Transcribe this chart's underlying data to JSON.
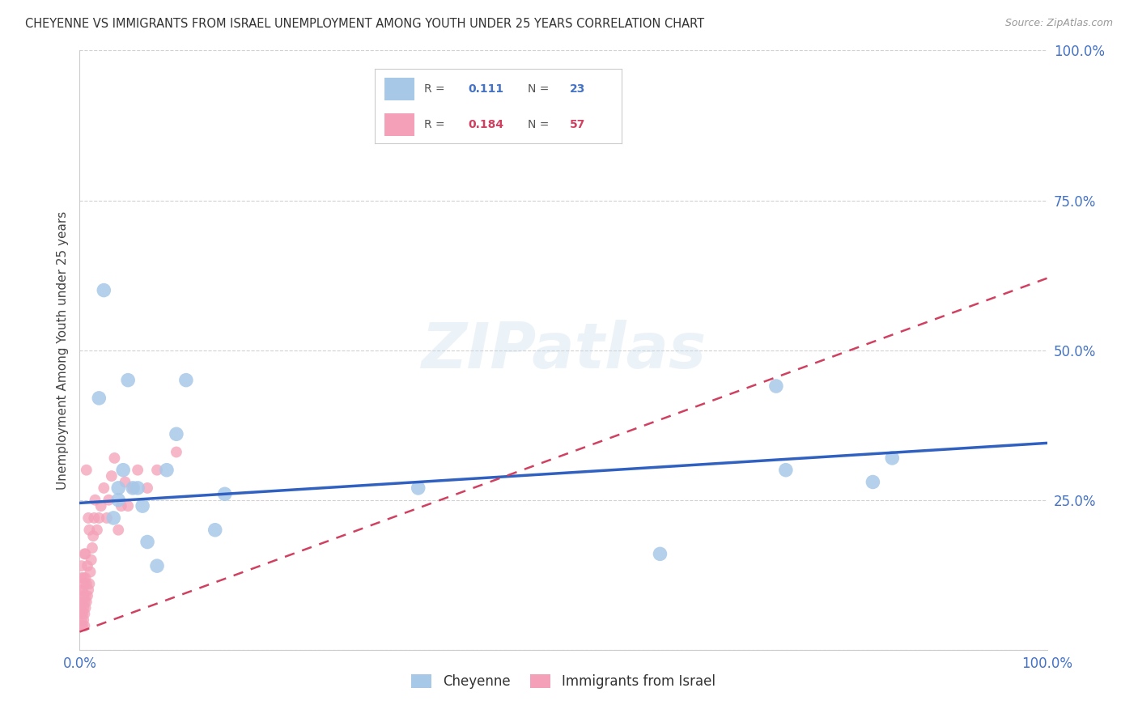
{
  "title": "CHEYENNE VS IMMIGRANTS FROM ISRAEL UNEMPLOYMENT AMONG YOUTH UNDER 25 YEARS CORRELATION CHART",
  "source": "Source: ZipAtlas.com",
  "ylabel": "Unemployment Among Youth under 25 years",
  "xlim": [
    0,
    1.0
  ],
  "ylim": [
    0,
    1.0
  ],
  "cheyenne_R": 0.111,
  "cheyenne_N": 23,
  "israel_R": 0.184,
  "israel_N": 57,
  "cheyenne_color": "#a8c8e8",
  "israel_color": "#f4a0b8",
  "cheyenne_line_color": "#3060c0",
  "israel_line_color": "#d04060",
  "watermark": "ZIPatlas",
  "background_color": "#ffffff",
  "cheyenne_x": [
    0.02,
    0.025,
    0.035,
    0.04,
    0.04,
    0.045,
    0.05,
    0.055,
    0.06,
    0.065,
    0.07,
    0.08,
    0.09,
    0.1,
    0.11,
    0.14,
    0.15,
    0.35,
    0.6,
    0.72,
    0.73,
    0.82,
    0.84
  ],
  "cheyenne_y": [
    0.42,
    0.6,
    0.22,
    0.27,
    0.25,
    0.3,
    0.45,
    0.27,
    0.27,
    0.24,
    0.18,
    0.14,
    0.3,
    0.36,
    0.45,
    0.2,
    0.26,
    0.27,
    0.16,
    0.44,
    0.3,
    0.28,
    0.32
  ],
  "israel_x": [
    0.002,
    0.002,
    0.002,
    0.002,
    0.002,
    0.002,
    0.002,
    0.002,
    0.003,
    0.003,
    0.003,
    0.003,
    0.004,
    0.004,
    0.004,
    0.004,
    0.005,
    0.005,
    0.005,
    0.005,
    0.005,
    0.006,
    0.006,
    0.006,
    0.006,
    0.007,
    0.007,
    0.007,
    0.008,
    0.008,
    0.009,
    0.009,
    0.01,
    0.01,
    0.011,
    0.012,
    0.013,
    0.014,
    0.015,
    0.016,
    0.018,
    0.02,
    0.022,
    0.025,
    0.028,
    0.03,
    0.033,
    0.036,
    0.04,
    0.043,
    0.047,
    0.05,
    0.055,
    0.06,
    0.07,
    0.08,
    0.1
  ],
  "israel_y": [
    0.04,
    0.05,
    0.06,
    0.07,
    0.08,
    0.1,
    0.12,
    0.14,
    0.04,
    0.06,
    0.08,
    0.1,
    0.05,
    0.07,
    0.09,
    0.12,
    0.04,
    0.06,
    0.08,
    0.11,
    0.16,
    0.07,
    0.09,
    0.12,
    0.16,
    0.08,
    0.11,
    0.3,
    0.09,
    0.14,
    0.1,
    0.22,
    0.11,
    0.2,
    0.13,
    0.15,
    0.17,
    0.19,
    0.22,
    0.25,
    0.2,
    0.22,
    0.24,
    0.27,
    0.22,
    0.25,
    0.29,
    0.32,
    0.2,
    0.24,
    0.28,
    0.24,
    0.27,
    0.3,
    0.27,
    0.3,
    0.33
  ],
  "cheyenne_line_x": [
    0.0,
    1.0
  ],
  "cheyenne_line_y_start": 0.245,
  "cheyenne_line_y_end": 0.345,
  "israel_line_x": [
    0.0,
    1.0
  ],
  "israel_line_y_start": 0.03,
  "israel_line_y_end": 0.62
}
